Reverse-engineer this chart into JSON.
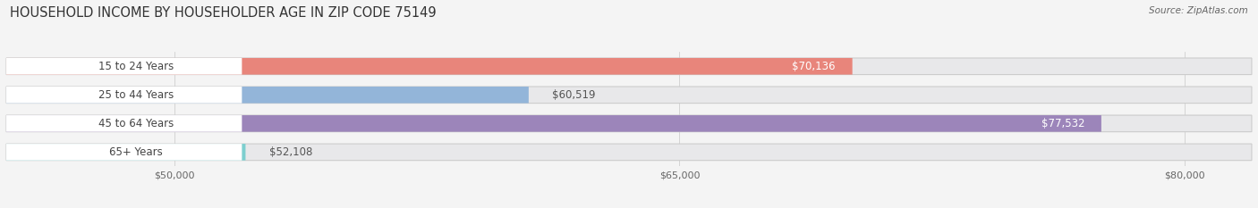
{
  "title": "HOUSEHOLD INCOME BY HOUSEHOLDER AGE IN ZIP CODE 75149",
  "source": "Source: ZipAtlas.com",
  "categories": [
    "15 to 24 Years",
    "25 to 44 Years",
    "45 to 64 Years",
    "65+ Years"
  ],
  "values": [
    70136,
    60519,
    77532,
    52108
  ],
  "bar_colors": [
    "#E8857B",
    "#93B5D9",
    "#9C85BA",
    "#7DCFCF"
  ],
  "bar_labels": [
    "$70,136",
    "$60,519",
    "$77,532",
    "$52,108"
  ],
  "label_inside": [
    true,
    false,
    true,
    false
  ],
  "xmin": 45000,
  "xmax": 82000,
  "xticks": [
    50000,
    65000,
    80000
  ],
  "xtick_labels": [
    "$50,000",
    "$65,000",
    "$80,000"
  ],
  "background_color": "#f4f4f4",
  "bar_bg_color": "#e8e8ea",
  "title_fontsize": 10.5,
  "source_fontsize": 7.5,
  "label_fontsize": 8.5,
  "tick_fontsize": 8,
  "bar_height": 0.58,
  "rounding": 0.29
}
